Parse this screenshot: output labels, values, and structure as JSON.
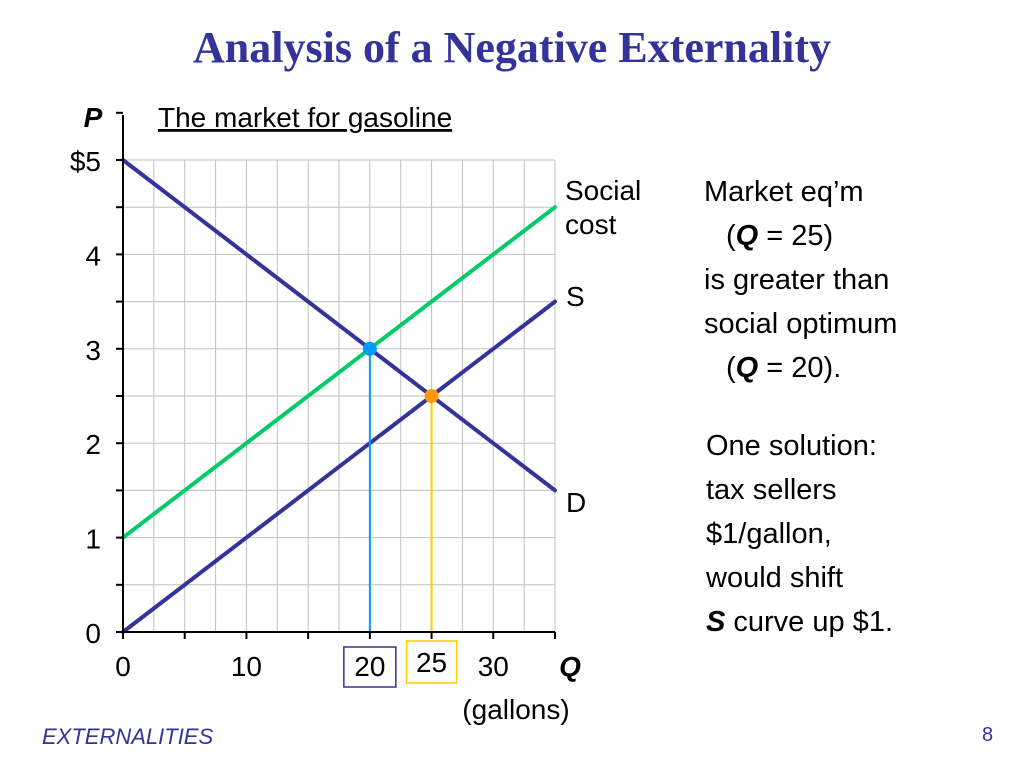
{
  "slide": {
    "title": "Analysis of a Negative Externality",
    "footer": "EXTERNALITIES",
    "page_number": "8"
  },
  "notes": {
    "block1": {
      "line1": "Market eq’m",
      "line2_open": "(",
      "line2_var": "Q",
      "line2_rest": " = 25)",
      "line3": "is greater than",
      "line4": "social optimum",
      "line5_open": "(",
      "line5_var": "Q",
      "line5_rest": " = 20)."
    },
    "block2": {
      "line1": "One solution:",
      "line2": "tax sellers",
      "line3": "$1/gallon,",
      "line4": "would shift",
      "line5_var": "S",
      "line5_rest": " curve up $1."
    }
  },
  "colors": {
    "title": "#333399",
    "demand": "#333399",
    "supply": "#333399",
    "social_cost": "#00cc66",
    "optimum_point": "#0099ff",
    "market_point": "#ff9900",
    "optimum_dropline": "#0099ff",
    "market_dropline": "#ffcc00",
    "grid": "#c0c0c0"
  },
  "chart_data": {
    "type": "line",
    "title": "The market for gasoline",
    "xlabel": "Q",
    "xlabel_note": "(gallons)",
    "ylabel": "P",
    "xlim": [
      0,
      35
    ],
    "ylim": [
      0,
      5
    ],
    "x_ticks": [
      0,
      10,
      20,
      25,
      30
    ],
    "x_tick_labels": [
      "0",
      "10",
      "20",
      "25",
      "30"
    ],
    "y_ticks": [
      0,
      1,
      2,
      3,
      4,
      5
    ],
    "y_tick_labels": [
      "0",
      "1",
      "2",
      "3",
      "4",
      "$5"
    ],
    "grid": true,
    "series": [
      {
        "name": "Social cost",
        "x": [
          0,
          35
        ],
        "y": [
          1,
          4.5
        ]
      },
      {
        "name": "S",
        "x": [
          0,
          35
        ],
        "y": [
          0,
          3.5
        ]
      },
      {
        "name": "D",
        "x": [
          0,
          35
        ],
        "y": [
          5,
          1.5
        ]
      }
    ],
    "points": [
      {
        "x": 20,
        "y": 3,
        "role": "social optimum"
      },
      {
        "x": 25,
        "y": 2.5,
        "role": "market equilibrium"
      }
    ]
  }
}
